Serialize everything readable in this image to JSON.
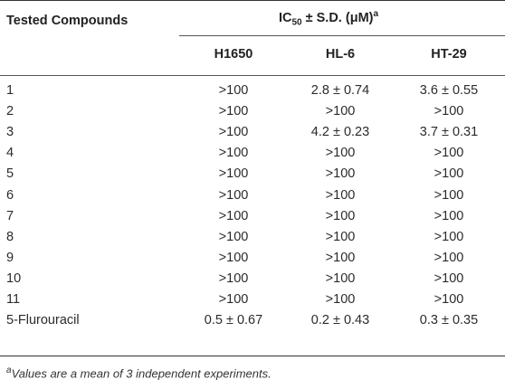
{
  "table": {
    "header_compounds": "Tested Compounds",
    "header_ic50_main": "IC",
    "header_ic50_sub": "50",
    "header_ic50_rest": " ± S.D. (μM)",
    "header_ic50_sup": "a",
    "columns": [
      "H1650",
      "HL-6",
      "HT-29"
    ],
    "rows": [
      {
        "compound": "1",
        "values": [
          ">100",
          "2.8 ± 0.74",
          "3.6 ± 0.55"
        ]
      },
      {
        "compound": "2",
        "values": [
          ">100",
          ">100",
          ">100"
        ]
      },
      {
        "compound": "3",
        "values": [
          ">100",
          "4.2 ± 0.23",
          "3.7 ± 0.31"
        ]
      },
      {
        "compound": "4",
        "values": [
          ">100",
          ">100",
          ">100"
        ]
      },
      {
        "compound": "5",
        "values": [
          ">100",
          ">100",
          ">100"
        ]
      },
      {
        "compound": "6",
        "values": [
          ">100",
          ">100",
          ">100"
        ]
      },
      {
        "compound": "7",
        "values": [
          ">100",
          ">100",
          ">100"
        ]
      },
      {
        "compound": "8",
        "values": [
          ">100",
          ">100",
          ">100"
        ]
      },
      {
        "compound": "9",
        "values": [
          ">100",
          ">100",
          ">100"
        ]
      },
      {
        "compound": "10",
        "values": [
          ">100",
          ">100",
          ">100"
        ]
      },
      {
        "compound": "11",
        "values": [
          ">100",
          ">100",
          ">100"
        ]
      },
      {
        "compound": "5-Flurouracil",
        "values": [
          "0.5 ± 0.67",
          "0.2 ± 0.43",
          "0.3 ± 0.35"
        ]
      }
    ],
    "footnote_mark": "a",
    "footnote_text": "Values are a mean of 3 independent experiments."
  }
}
